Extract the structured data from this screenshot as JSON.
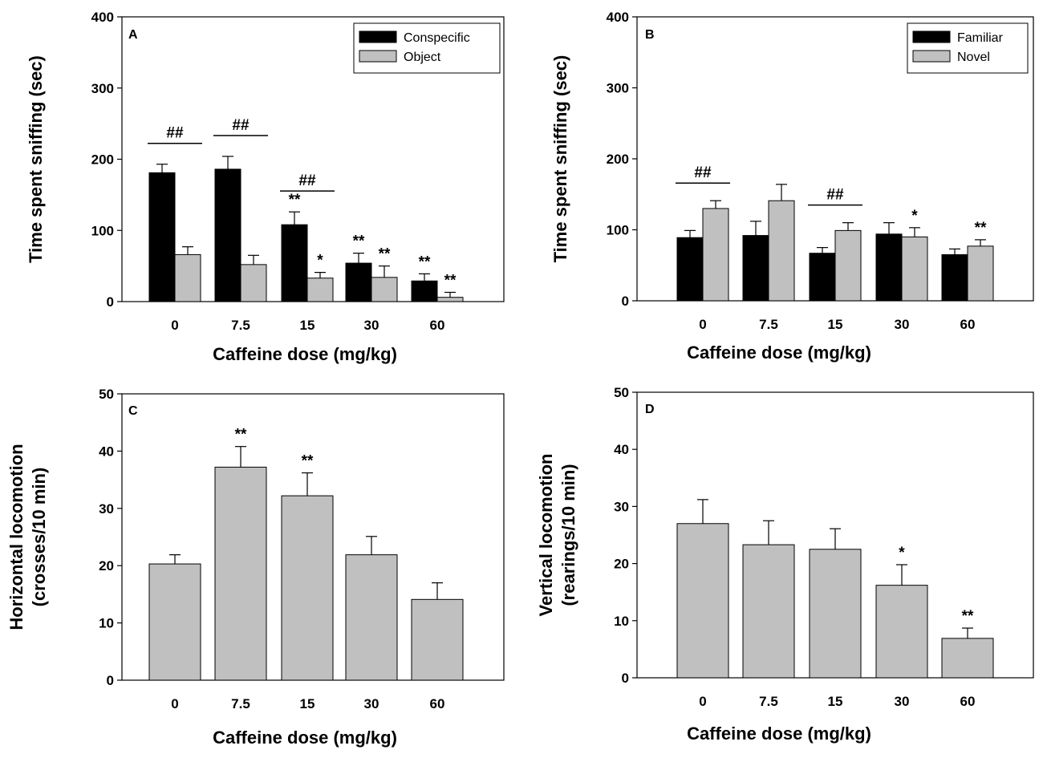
{
  "figure": {
    "colors": {
      "black_series": "#000000",
      "gray_series": "#c0c0c0",
      "axis": "#000000"
    }
  },
  "chart_data": [
    {
      "panel": "A",
      "type": "bar",
      "categories": [
        "0",
        "7.5",
        "15",
        "30",
        "60"
      ],
      "series": [
        {
          "name": "Conspecific",
          "color": "#000000",
          "values": [
            181,
            186,
            108,
            54,
            29
          ],
          "errors": [
            12,
            18,
            18,
            14,
            10
          ],
          "markers": [
            "",
            "",
            "**",
            "**",
            "**"
          ]
        },
        {
          "name": "Object",
          "color": "#c0c0c0",
          "values": [
            66,
            52,
            33,
            34,
            6
          ],
          "errors": [
            11,
            13,
            8,
            16,
            7
          ],
          "markers": [
            "",
            "",
            "*",
            "**",
            "**"
          ]
        }
      ],
      "bracket_groups": [
        0,
        1,
        2
      ],
      "bracket_label": "##",
      "xlabel": "Caffeine dose (mg/kg)",
      "ylabel": "Time spent sniffing (sec)",
      "ylim": [
        0,
        400
      ],
      "yticks": [
        0,
        100,
        200,
        300,
        400
      ],
      "legend_position": "top-right"
    },
    {
      "panel": "B",
      "type": "bar",
      "categories": [
        "0",
        "7.5",
        "15",
        "30",
        "60"
      ],
      "series": [
        {
          "name": "Familiar",
          "color": "#000000",
          "values": [
            89,
            92,
            67,
            94,
            65
          ],
          "errors": [
            10,
            20,
            8,
            16,
            8
          ],
          "markers": [
            "",
            "",
            "",
            "",
            ""
          ]
        },
        {
          "name": "Novel",
          "color": "#c0c0c0",
          "values": [
            130,
            141,
            99,
            90,
            77
          ],
          "errors": [
            11,
            23,
            11,
            13,
            9
          ],
          "markers": [
            "",
            "",
            "",
            "*",
            "**"
          ]
        }
      ],
      "bracket_groups": [
        0,
        2
      ],
      "bracket_label": "##",
      "xlabel": "Caffeine dose (mg/kg)",
      "ylabel": "Time spent sniffing (sec)",
      "ylim": [
        0,
        400
      ],
      "yticks": [
        0,
        100,
        200,
        300,
        400
      ],
      "legend_position": "top-right"
    },
    {
      "panel": "C",
      "type": "bar",
      "categories": [
        "0",
        "7.5",
        "15",
        "30",
        "60"
      ],
      "series": [
        {
          "name": "",
          "color": "#c0c0c0",
          "values": [
            20.3,
            37.2,
            32.2,
            21.9,
            14.1
          ],
          "errors": [
            1.6,
            3.6,
            4.0,
            3.2,
            2.9
          ],
          "markers": [
            "",
            "**",
            "**",
            "",
            ""
          ]
        }
      ],
      "bracket_groups": [],
      "bracket_label": "",
      "xlabel": "Caffeine dose (mg/kg)",
      "ylabel": "Horizontal locomotion (crosses/10 min)",
      "ylabel_lines": [
        "Horizontal locomotion",
        "(crosses/10 min)"
      ],
      "ylim": [
        0,
        50
      ],
      "yticks": [
        0,
        10,
        20,
        30,
        40,
        50
      ],
      "legend_position": "none"
    },
    {
      "panel": "D",
      "type": "bar",
      "categories": [
        "0",
        "7.5",
        "15",
        "30",
        "60"
      ],
      "series": [
        {
          "name": "",
          "color": "#c0c0c0",
          "values": [
            27.0,
            23.3,
            22.5,
            16.2,
            6.9
          ],
          "errors": [
            4.2,
            4.2,
            3.6,
            3.6,
            1.8
          ],
          "markers": [
            "",
            "",
            "",
            "*",
            "**"
          ]
        }
      ],
      "bracket_groups": [],
      "bracket_label": "",
      "xlabel": "Caffeine dose (mg/kg)",
      "ylabel": "Vertical locomotion (rearings/10 min)",
      "ylabel_lines": [
        "Vertical locomotion",
        "(rearings/10 min)"
      ],
      "ylim": [
        0,
        50
      ],
      "yticks": [
        0,
        10,
        20,
        30,
        40,
        50
      ],
      "legend_position": "none"
    }
  ]
}
